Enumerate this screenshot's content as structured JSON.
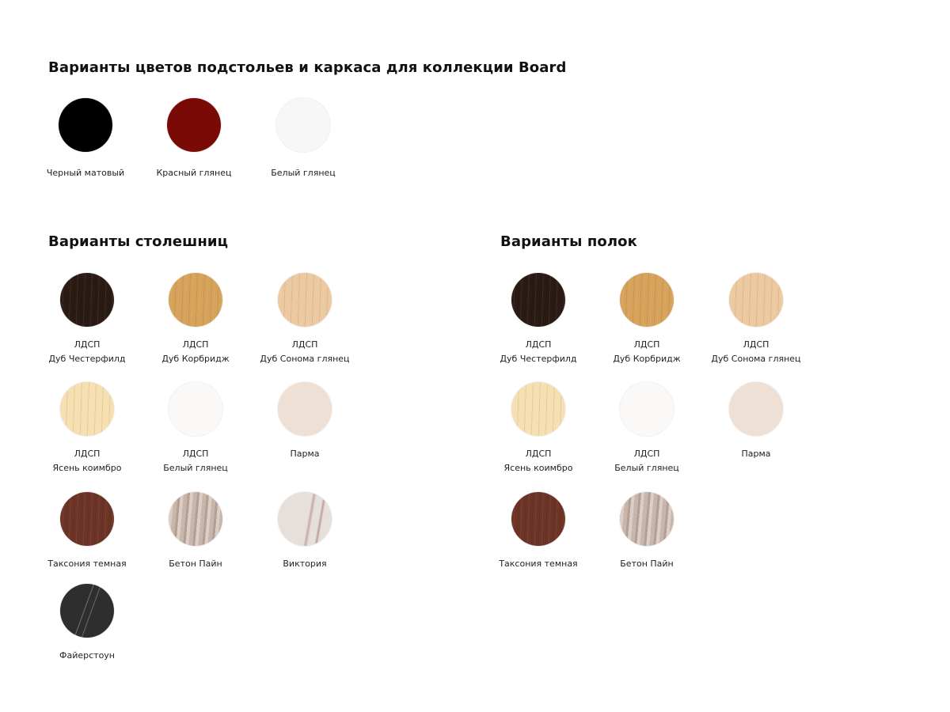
{
  "frames": {
    "title": "Варианты цветов подстольев и каркаса для коллекции Board",
    "items": [
      {
        "name": "Черный матовый",
        "color": "#000000",
        "texture": "solid"
      },
      {
        "name": "Красный глянец",
        "color": "#7a0a06",
        "texture": "solid"
      },
      {
        "name": "Белый глянец",
        "color": "#f7f7f7",
        "texture": "solid"
      }
    ]
  },
  "tops": {
    "title": "Варианты столешниц",
    "items": [
      {
        "material": "ЛДСП",
        "name": "Дуб Честерфилд",
        "color": "#2a1b14",
        "texture": "wood"
      },
      {
        "material": "ЛДСП",
        "name": "Дуб Корбридж",
        "color": "#d7a25a",
        "texture": "wood"
      },
      {
        "material": "ЛДСП",
        "name": "Дуб Сонома глянец",
        "color": "#ecc9a0",
        "texture": "wood"
      },
      {
        "material": "ЛДСП",
        "name": "Ясень коимбро",
        "color": "#f6dfb0",
        "texture": "wood"
      },
      {
        "material": "ЛДСП",
        "name": "Белый глянец",
        "color": "#fbf9f8",
        "texture": "solid"
      },
      {
        "name": "Парма",
        "color": "#efe0d6",
        "texture": "solid"
      },
      {
        "name": "Таксония темная",
        "color": "#6b3427",
        "texture": "wood"
      },
      {
        "name": "Бетон Пайн",
        "color": "#c8b6ab",
        "texture": "stone"
      },
      {
        "name": "Виктория",
        "color": "#e5e0dc",
        "texture": "marble-light"
      },
      {
        "name": "Файерстоун",
        "color": "#2e2e2e",
        "texture": "marble-dark"
      }
    ]
  },
  "shelves": {
    "title": "Варианты полок",
    "items": [
      {
        "material": "ЛДСП",
        "name": "Дуб Честерфилд",
        "color": "#2a1b14",
        "texture": "wood"
      },
      {
        "material": "ЛДСП",
        "name": "Дуб Корбридж",
        "color": "#d7a25a",
        "texture": "wood"
      },
      {
        "material": "ЛДСП",
        "name": "Дуб Сонома глянец",
        "color": "#ecc9a0",
        "texture": "wood"
      },
      {
        "material": "ЛДСП",
        "name": "Ясень коимбро",
        "color": "#f6dfb0",
        "texture": "wood"
      },
      {
        "material": "ЛДСП",
        "name": "Белый глянец",
        "color": "#fbf9f8",
        "texture": "solid"
      },
      {
        "name": "Парма",
        "color": "#efe0d6",
        "texture": "solid"
      },
      {
        "name": "Таксония темная",
        "color": "#6b3427",
        "texture": "wood"
      },
      {
        "name": "Бетон Пайн",
        "color": "#c8b6ab",
        "texture": "stone"
      }
    ]
  }
}
